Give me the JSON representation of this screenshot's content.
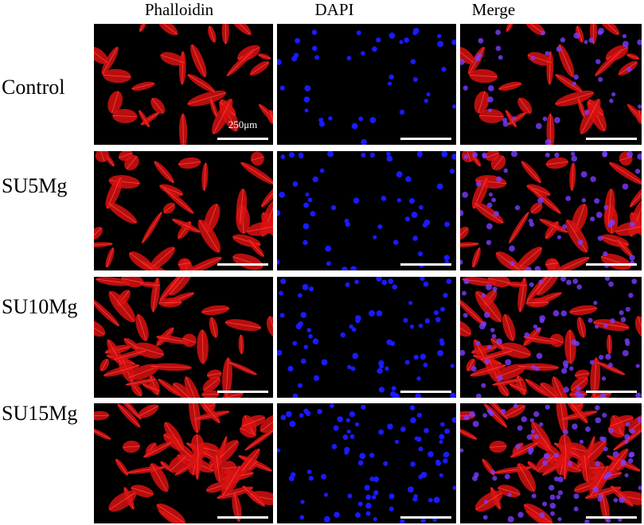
{
  "column_headers": [
    "Phalloidin",
    "DAPI",
    "Merge"
  ],
  "row_labels": [
    "Control",
    "SU5Mg",
    "SU10Mg",
    "SU15Mg"
  ],
  "scale_bar_label": "250μm"
}
